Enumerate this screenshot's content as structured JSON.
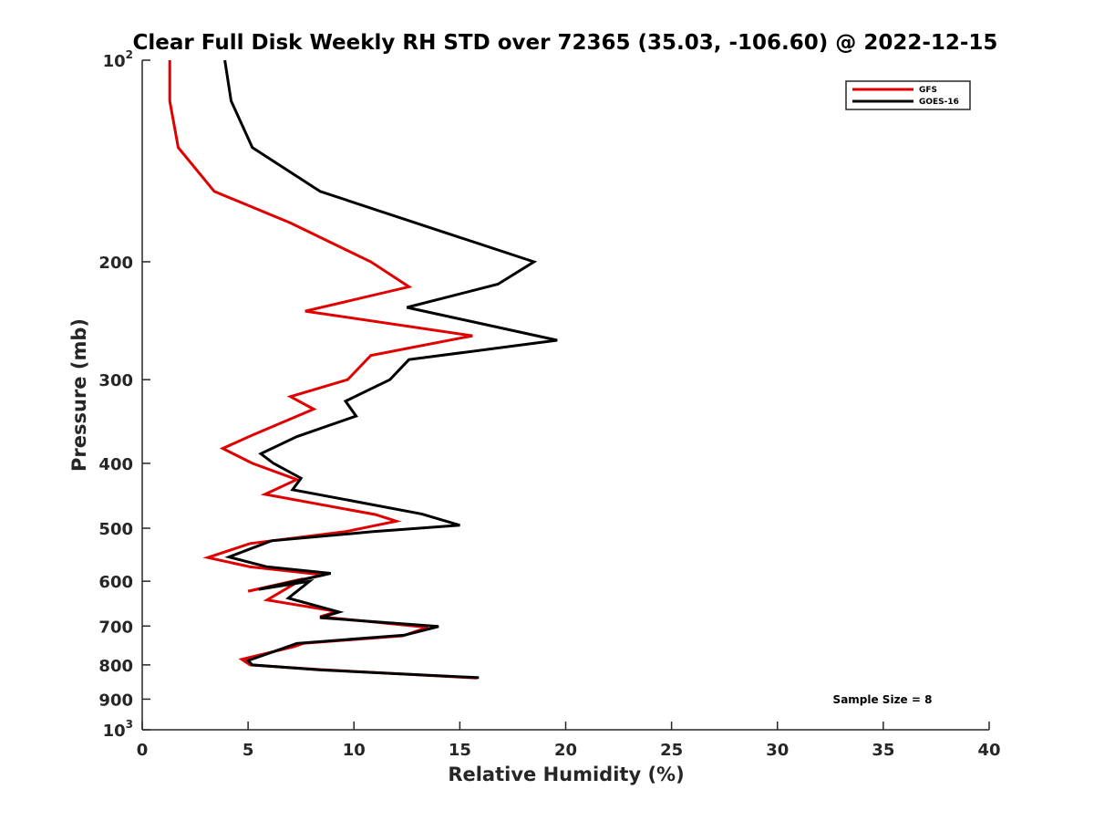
{
  "chart_data": {
    "type": "line",
    "title": "Clear Full Disk Weekly RH STD over 72365 (35.03, -106.60) @ 2022-12-15",
    "xlabel": "Relative Humidity (%)",
    "ylabel": "Pressure (mb)",
    "xlim": [
      0,
      40
    ],
    "ylim": [
      100,
      1000
    ],
    "y_scale": "log",
    "y_reversed": true,
    "x_ticks": [
      "0",
      "5",
      "10",
      "15",
      "20",
      "25",
      "30",
      "35",
      "40"
    ],
    "x_tick_values": [
      0,
      5,
      10,
      15,
      20,
      25,
      30,
      35,
      40
    ],
    "y_ticks": [
      {
        "value": 100,
        "base": "10",
        "exp": "2"
      },
      {
        "value": 200,
        "label": "200"
      },
      {
        "value": 300,
        "label": "300"
      },
      {
        "value": 400,
        "label": "400"
      },
      {
        "value": 500,
        "label": "500"
      },
      {
        "value": 600,
        "label": "600"
      },
      {
        "value": 700,
        "label": "700"
      },
      {
        "value": 800,
        "label": "800"
      },
      {
        "value": 900,
        "label": "900"
      },
      {
        "value": 1000,
        "base": "10",
        "exp": "3"
      }
    ],
    "legend_position": "top-right",
    "grid": false,
    "annotation": "Sample Size = 8",
    "series": [
      {
        "name": "GFS",
        "color": "#e00000",
        "points": [
          [
            1.3,
            100
          ],
          [
            1.3,
            115
          ],
          [
            1.7,
            135
          ],
          [
            3.4,
            157
          ],
          [
            7.0,
            175
          ],
          [
            10.8,
            200
          ],
          [
            12.6,
            218
          ],
          [
            7.7,
            237
          ],
          [
            15.6,
            258
          ],
          [
            10.8,
            276
          ],
          [
            9.7,
            300
          ],
          [
            7.0,
            318
          ],
          [
            8.1,
            332
          ],
          [
            5.2,
            363
          ],
          [
            3.8,
            380
          ],
          [
            5.2,
            400
          ],
          [
            7.3,
            423
          ],
          [
            5.8,
            445
          ],
          [
            11.0,
            477
          ],
          [
            12.0,
            488
          ],
          [
            9.6,
            506
          ],
          [
            5.1,
            527
          ],
          [
            3.1,
            553
          ],
          [
            5.1,
            571
          ],
          [
            8.6,
            587
          ],
          [
            5.0,
            621
          ],
          [
            7.6,
            595
          ],
          [
            5.9,
            640
          ],
          [
            9.2,
            666
          ],
          [
            8.4,
            678
          ],
          [
            13.5,
            703
          ],
          [
            12.3,
            724
          ],
          [
            7.6,
            743
          ],
          [
            7.2,
            751
          ],
          [
            4.7,
            785
          ],
          [
            5.1,
            800
          ],
          [
            8.4,
            813
          ],
          [
            15.8,
            837
          ]
        ]
      },
      {
        "name": "GOES-16",
        "color": "#000000",
        "points": [
          [
            3.9,
            100
          ],
          [
            4.2,
            115
          ],
          [
            5.2,
            135
          ],
          [
            8.4,
            157
          ],
          [
            14.1,
            180
          ],
          [
            18.5,
            200
          ],
          [
            16.8,
            216
          ],
          [
            12.5,
            234
          ],
          [
            19.6,
            262
          ],
          [
            12.6,
            280
          ],
          [
            11.7,
            300
          ],
          [
            9.6,
            323
          ],
          [
            10.1,
            340
          ],
          [
            7.3,
            365
          ],
          [
            5.6,
            387
          ],
          [
            6.2,
            400
          ],
          [
            7.5,
            421
          ],
          [
            7.1,
            438
          ],
          [
            13.2,
            476
          ],
          [
            15.0,
            495
          ],
          [
            10.9,
            506
          ],
          [
            6.1,
            522
          ],
          [
            4.1,
            552
          ],
          [
            5.9,
            571
          ],
          [
            8.9,
            584
          ],
          [
            5.5,
            617
          ],
          [
            7.9,
            600
          ],
          [
            6.9,
            636
          ],
          [
            9.3,
            667
          ],
          [
            8.4,
            680
          ],
          [
            14.0,
            701
          ],
          [
            12.4,
            722
          ],
          [
            7.3,
            743
          ],
          [
            6.9,
            751
          ],
          [
            5.0,
            788
          ],
          [
            5.2,
            800
          ],
          [
            8.4,
            814
          ],
          [
            15.9,
            836
          ]
        ]
      }
    ]
  }
}
